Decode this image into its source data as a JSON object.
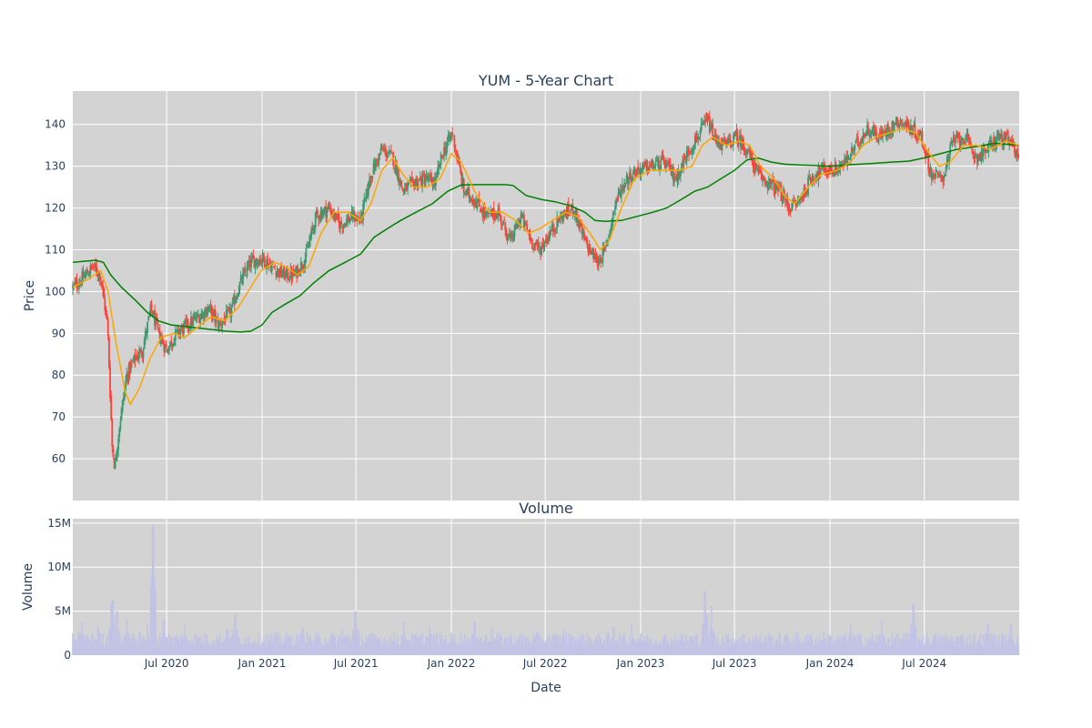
{
  "chart_data": [
    {
      "type": "candlestick",
      "title": "YUM - 5-Year Chart",
      "ylabel": "Price",
      "xlabel": "",
      "x_range": [
        "2020-01-02",
        "2024-12-31"
      ],
      "ylim": [
        50,
        148
      ],
      "yticks": [
        60,
        70,
        80,
        90,
        100,
        110,
        120,
        130,
        140
      ],
      "xticks": [
        {
          "date": "2020-07-01",
          "label": "Jul 2020"
        },
        {
          "date": "2021-01-01",
          "label": "Jan 2021"
        },
        {
          "date": "2021-07-01",
          "label": "Jul 2021"
        },
        {
          "date": "2022-01-01",
          "label": "Jan 2022"
        },
        {
          "date": "2022-07-01",
          "label": "Jul 2022"
        },
        {
          "date": "2023-01-01",
          "label": "Jan 2023"
        },
        {
          "date": "2023-07-01",
          "label": "Jul 2023"
        },
        {
          "date": "2024-01-01",
          "label": "Jan 2024"
        },
        {
          "date": "2024-07-01",
          "label": "Jul 2024"
        }
      ],
      "grid": true,
      "colors": {
        "up": "#3d9970",
        "down": "#ff4136",
        "ma_short": "#ffa500",
        "ma_long": "#008000",
        "plot_bg": "#d3d3d3"
      },
      "close_path": [
        [
          "2020-01-02",
          101
        ],
        [
          "2020-01-20",
          103
        ],
        [
          "2020-02-10",
          106
        ],
        [
          "2020-02-24",
          104
        ],
        [
          "2020-03-09",
          92
        ],
        [
          "2020-03-18",
          63
        ],
        [
          "2020-03-23",
          58
        ],
        [
          "2020-04-01",
          68
        ],
        [
          "2020-04-15",
          80
        ],
        [
          "2020-05-01",
          84
        ],
        [
          "2020-05-15",
          86
        ],
        [
          "2020-06-01",
          96
        ],
        [
          "2020-06-15",
          90
        ],
        [
          "2020-07-01",
          86
        ],
        [
          "2020-07-20",
          90
        ],
        [
          "2020-08-10",
          92
        ],
        [
          "2020-09-01",
          94
        ],
        [
          "2020-09-20",
          96
        ],
        [
          "2020-10-10",
          92
        ],
        [
          "2020-11-01",
          95
        ],
        [
          "2020-11-20",
          102
        ],
        [
          "2020-12-10",
          107
        ],
        [
          "2021-01-01",
          108
        ],
        [
          "2021-01-20",
          106
        ],
        [
          "2021-02-10",
          104
        ],
        [
          "2021-03-05",
          104
        ],
        [
          "2021-03-25",
          108
        ],
        [
          "2021-04-15",
          118
        ],
        [
          "2021-05-10",
          120
        ],
        [
          "2021-06-01",
          116
        ],
        [
          "2021-06-25",
          118
        ],
        [
          "2021-07-10",
          117
        ],
        [
          "2021-07-30",
          128
        ],
        [
          "2021-08-20",
          134
        ],
        [
          "2021-09-10",
          132
        ],
        [
          "2021-09-30",
          124
        ],
        [
          "2021-10-20",
          126
        ],
        [
          "2021-11-10",
          127
        ],
        [
          "2021-12-01",
          126
        ],
        [
          "2021-12-15",
          133
        ],
        [
          "2022-01-03",
          138
        ],
        [
          "2022-01-25",
          124
        ],
        [
          "2022-02-15",
          122
        ],
        [
          "2022-03-10",
          118
        ],
        [
          "2022-04-01",
          119
        ],
        [
          "2022-04-25",
          112
        ],
        [
          "2022-05-15",
          118
        ],
        [
          "2022-06-05",
          112
        ],
        [
          "2022-06-20",
          110
        ],
        [
          "2022-07-10",
          114
        ],
        [
          "2022-08-01",
          118
        ],
        [
          "2022-08-25",
          120
        ],
        [
          "2022-09-15",
          112
        ],
        [
          "2022-10-10",
          107
        ],
        [
          "2022-10-25",
          110
        ],
        [
          "2022-11-15",
          122
        ],
        [
          "2022-12-05",
          127
        ],
        [
          "2022-12-25",
          129
        ],
        [
          "2023-01-20",
          130
        ],
        [
          "2023-02-15",
          131
        ],
        [
          "2023-03-10",
          127
        ],
        [
          "2023-04-01",
          133
        ],
        [
          "2023-04-25",
          138
        ],
        [
          "2023-05-10",
          141
        ],
        [
          "2023-05-25",
          136
        ],
        [
          "2023-06-15",
          135
        ],
        [
          "2023-07-05",
          137
        ],
        [
          "2023-07-25",
          134
        ],
        [
          "2023-08-15",
          128
        ],
        [
          "2023-09-05",
          126
        ],
        [
          "2023-09-25",
          124
        ],
        [
          "2023-10-15",
          120
        ],
        [
          "2023-11-05",
          122
        ],
        [
          "2023-11-25",
          127
        ],
        [
          "2023-12-15",
          129
        ],
        [
          "2024-01-10",
          129
        ],
        [
          "2024-02-01",
          131
        ],
        [
          "2024-02-25",
          136
        ],
        [
          "2024-03-15",
          139
        ],
        [
          "2024-04-05",
          137
        ],
        [
          "2024-04-25",
          139
        ],
        [
          "2024-05-15",
          141
        ],
        [
          "2024-06-05",
          139
        ],
        [
          "2024-06-25",
          137
        ],
        [
          "2024-07-15",
          128
        ],
        [
          "2024-08-05",
          127
        ],
        [
          "2024-08-25",
          136
        ],
        [
          "2024-09-15",
          137
        ],
        [
          "2024-10-10",
          132
        ],
        [
          "2024-10-30",
          134
        ],
        [
          "2024-11-20",
          137
        ],
        [
          "2024-12-10",
          136
        ],
        [
          "2024-12-31",
          133
        ]
      ],
      "ma_short": [
        [
          "2020-01-02",
          101
        ],
        [
          "2020-02-01",
          103
        ],
        [
          "2020-02-25",
          105
        ],
        [
          "2020-03-10",
          100
        ],
        [
          "2020-03-25",
          88
        ],
        [
          "2020-04-12",
          76
        ],
        [
          "2020-04-22",
          73
        ],
        [
          "2020-05-10",
          77
        ],
        [
          "2020-05-30",
          84
        ],
        [
          "2020-06-20",
          89
        ],
        [
          "2020-07-15",
          90
        ],
        [
          "2020-08-05",
          89
        ],
        [
          "2020-08-25",
          91
        ],
        [
          "2020-09-25",
          94
        ],
        [
          "2020-10-20",
          93
        ],
        [
          "2020-11-15",
          96
        ],
        [
          "2020-12-05",
          100
        ],
        [
          "2020-12-30",
          105
        ],
        [
          "2021-01-25",
          107
        ],
        [
          "2021-02-15",
          106
        ],
        [
          "2021-03-10",
          104
        ],
        [
          "2021-04-01",
          106
        ],
        [
          "2021-04-25",
          114
        ],
        [
          "2021-05-20",
          119
        ],
        [
          "2021-06-15",
          119
        ],
        [
          "2021-07-10",
          117
        ],
        [
          "2021-07-30",
          121
        ],
        [
          "2021-08-20",
          129
        ],
        [
          "2021-09-10",
          132
        ],
        [
          "2021-09-30",
          128
        ],
        [
          "2021-10-20",
          125
        ],
        [
          "2021-11-15",
          125
        ],
        [
          "2021-12-10",
          127
        ],
        [
          "2022-01-01",
          133
        ],
        [
          "2022-01-20",
          131
        ],
        [
          "2022-02-15",
          124
        ],
        [
          "2022-03-15",
          119
        ],
        [
          "2022-04-10",
          119
        ],
        [
          "2022-05-05",
          117
        ],
        [
          "2022-05-30",
          114
        ],
        [
          "2022-06-20",
          115
        ],
        [
          "2022-07-15",
          117
        ],
        [
          "2022-08-10",
          119
        ],
        [
          "2022-09-01",
          118
        ],
        [
          "2022-09-25",
          114
        ],
        [
          "2022-10-15",
          110
        ],
        [
          "2022-11-01",
          112
        ],
        [
          "2022-11-25",
          120
        ],
        [
          "2022-12-20",
          127
        ],
        [
          "2023-01-20",
          129
        ],
        [
          "2023-02-20",
          129
        ],
        [
          "2023-03-15",
          129
        ],
        [
          "2023-04-10",
          130
        ],
        [
          "2023-04-30",
          135
        ],
        [
          "2023-05-20",
          137
        ],
        [
          "2023-06-15",
          135
        ],
        [
          "2023-07-10",
          136
        ],
        [
          "2023-07-30",
          135
        ],
        [
          "2023-08-20",
          130
        ],
        [
          "2023-09-15",
          127
        ],
        [
          "2023-10-05",
          123
        ],
        [
          "2023-10-25",
          121
        ],
        [
          "2023-11-20",
          125
        ],
        [
          "2023-12-15",
          128
        ],
        [
          "2024-01-15",
          129
        ],
        [
          "2024-02-10",
          131
        ],
        [
          "2024-03-05",
          135
        ],
        [
          "2024-03-30",
          137
        ],
        [
          "2024-04-25",
          138
        ],
        [
          "2024-05-20",
          139
        ],
        [
          "2024-06-15",
          138
        ],
        [
          "2024-07-05",
          134
        ],
        [
          "2024-07-30",
          130
        ],
        [
          "2024-08-20",
          131
        ],
        [
          "2024-09-15",
          135
        ],
        [
          "2024-10-10",
          135
        ],
        [
          "2024-11-05",
          134
        ],
        [
          "2024-12-05",
          136
        ],
        [
          "2024-12-31",
          135
        ]
      ],
      "ma_long": [
        [
          "2020-01-02",
          107
        ],
        [
          "2020-02-15",
          107.5
        ],
        [
          "2020-03-01",
          107
        ],
        [
          "2020-03-15",
          104
        ],
        [
          "2020-04-05",
          101
        ],
        [
          "2020-05-01",
          98
        ],
        [
          "2020-05-25",
          95
        ],
        [
          "2020-06-15",
          93
        ],
        [
          "2020-07-10",
          92
        ],
        [
          "2020-08-15",
          91.5
        ],
        [
          "2020-09-20",
          91
        ],
        [
          "2020-10-25",
          90.5
        ],
        [
          "2020-11-20",
          90.3
        ],
        [
          "2020-12-10",
          90.5
        ],
        [
          "2021-01-01",
          92
        ],
        [
          "2021-01-20",
          95
        ],
        [
          "2021-02-15",
          97
        ],
        [
          "2021-03-15",
          99
        ],
        [
          "2021-04-10",
          102
        ],
        [
          "2021-05-10",
          105
        ],
        [
          "2021-06-10",
          107
        ],
        [
          "2021-07-10",
          109
        ],
        [
          "2021-08-05",
          113
        ],
        [
          "2021-08-30",
          115
        ],
        [
          "2021-09-25",
          117
        ],
        [
          "2021-10-25",
          119
        ],
        [
          "2021-11-25",
          121
        ],
        [
          "2021-12-25",
          124
        ],
        [
          "2022-01-20",
          125.5
        ],
        [
          "2022-02-20",
          125.6
        ],
        [
          "2022-03-20",
          125.6
        ],
        [
          "2022-04-15",
          125.6
        ],
        [
          "2022-04-30",
          125.4
        ],
        [
          "2022-05-25",
          123
        ],
        [
          "2022-06-25",
          122
        ],
        [
          "2022-07-20",
          121.5
        ],
        [
          "2022-08-20",
          120.5
        ],
        [
          "2022-09-15",
          119
        ],
        [
          "2022-10-05",
          117
        ],
        [
          "2022-10-25",
          116.8
        ],
        [
          "2022-11-25",
          117
        ],
        [
          "2022-12-25",
          118
        ],
        [
          "2023-01-25",
          119
        ],
        [
          "2023-02-20",
          120
        ],
        [
          "2023-03-20",
          122
        ],
        [
          "2023-04-15",
          124
        ],
        [
          "2023-05-10",
          125
        ],
        [
          "2023-06-05",
          127
        ],
        [
          "2023-07-01",
          129
        ],
        [
          "2023-07-25",
          131.5
        ],
        [
          "2023-08-15",
          132
        ],
        [
          "2023-09-10",
          131
        ],
        [
          "2023-10-05",
          130.5
        ],
        [
          "2023-11-01",
          130.3
        ],
        [
          "2023-12-01",
          130.2
        ],
        [
          "2024-01-01",
          130
        ],
        [
          "2024-02-01",
          130.3
        ],
        [
          "2024-03-15",
          130.6
        ],
        [
          "2024-04-30",
          131
        ],
        [
          "2024-06-01",
          131.2
        ],
        [
          "2024-07-01",
          132
        ],
        [
          "2024-08-01",
          133
        ],
        [
          "2024-09-01",
          134
        ],
        [
          "2024-10-15",
          134.8
        ],
        [
          "2024-11-15",
          135.5
        ],
        [
          "2024-12-31",
          135
        ]
      ]
    },
    {
      "type": "bar",
      "title": "Volume",
      "ylabel": "Volume",
      "xlabel": "Date",
      "x_range": [
        "2020-01-02",
        "2024-12-31"
      ],
      "ylim": [
        0,
        15500000
      ],
      "yticks": [
        {
          "value": 0,
          "label": "0"
        },
        {
          "value": 5000000,
          "label": "5M"
        },
        {
          "value": 10000000,
          "label": "10M"
        },
        {
          "value": 15000000,
          "label": "15M"
        }
      ],
      "xticks": [
        {
          "date": "2020-07-01",
          "label": "Jul 2020"
        },
        {
          "date": "2021-01-01",
          "label": "Jan 2021"
        },
        {
          "date": "2021-07-01",
          "label": "Jul 2021"
        },
        {
          "date": "2022-01-01",
          "label": "Jan 2022"
        },
        {
          "date": "2022-07-01",
          "label": "Jul 2022"
        },
        {
          "date": "2023-01-01",
          "label": "Jan 2023"
        },
        {
          "date": "2023-07-01",
          "label": "Jul 2023"
        },
        {
          "date": "2024-01-01",
          "label": "Jan 2024"
        },
        {
          "date": "2024-07-01",
          "label": "Jul 2024"
        }
      ],
      "grid": true,
      "colors": {
        "bar": "#c3c3e6",
        "plot_bg": "#d3d3d3"
      },
      "baseline_volume": 1800000,
      "spikes": [
        [
          "2020-01-20",
          3800000
        ],
        [
          "2020-02-20",
          3200000
        ],
        [
          "2020-03-16",
          5800000
        ],
        [
          "2020-03-19",
          6200000
        ],
        [
          "2020-03-27",
          5000000
        ],
        [
          "2020-04-15",
          4200000
        ],
        [
          "2020-05-25",
          3500000
        ],
        [
          "2020-06-05",
          14800000
        ],
        [
          "2020-06-25",
          4000000
        ],
        [
          "2020-08-05",
          3700000
        ],
        [
          "2020-10-25",
          2900000
        ],
        [
          "2020-11-10",
          4600000
        ],
        [
          "2021-03-20",
          3100000
        ],
        [
          "2021-06-05",
          3000000
        ],
        [
          "2021-06-30",
          5000000
        ],
        [
          "2021-10-01",
          3800000
        ],
        [
          "2021-11-20",
          3300000
        ],
        [
          "2022-02-15",
          3800000
        ],
        [
          "2022-03-20",
          3200000
        ],
        [
          "2022-08-05",
          3000000
        ],
        [
          "2022-11-10",
          3200000
        ],
        [
          "2022-12-15",
          3600000
        ],
        [
          "2023-05-05",
          7300000
        ],
        [
          "2023-05-18",
          5600000
        ],
        [
          "2023-12-20",
          2800000
        ],
        [
          "2024-02-10",
          3500000
        ],
        [
          "2024-04-10",
          4000000
        ],
        [
          "2024-06-10",
          5800000
        ],
        [
          "2024-11-01",
          3500000
        ],
        [
          "2024-12-15",
          3500000
        ]
      ]
    }
  ]
}
